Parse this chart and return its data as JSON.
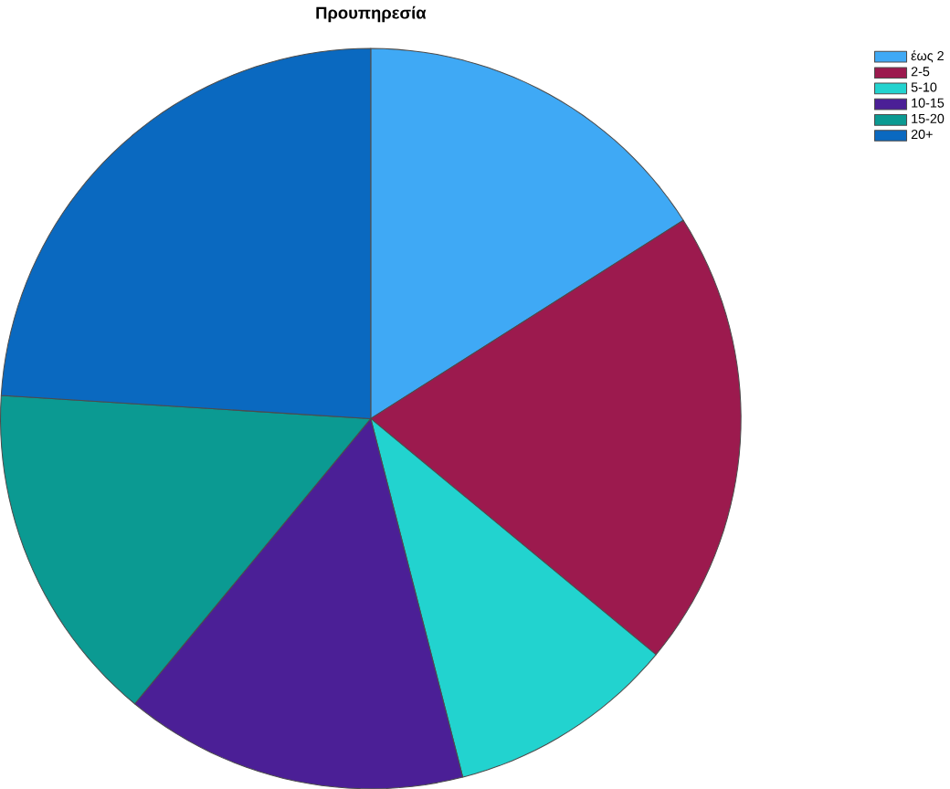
{
  "chart_data": {
    "type": "pie",
    "title": "Προυπηρεσία",
    "categories": [
      "έως 2",
      "2-5",
      "5-10",
      "10-15",
      "15-20",
      "20+"
    ],
    "values": [
      16,
      20,
      10,
      15,
      15,
      24
    ],
    "colors": [
      "#3fa9f5",
      "#9c1a4e",
      "#22d3cf",
      "#4b1f96",
      "#0b9a92",
      "#0a69c0"
    ],
    "legend": "top right"
  }
}
